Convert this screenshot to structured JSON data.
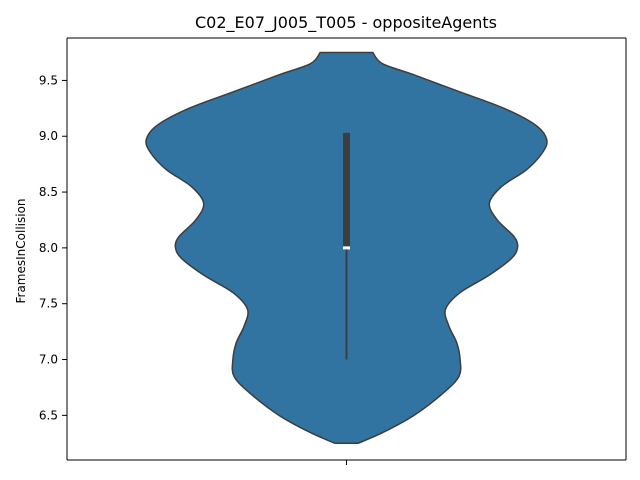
{
  "chart_data": {
    "type": "violin",
    "title": "C02_E07_J005_T005 - oppositeAgents",
    "xlabel": "",
    "ylabel": "FramesInCollision",
    "ylim": [
      6.1,
      9.88
    ],
    "yticks": [
      "6.5",
      "7.0",
      "7.5",
      "8.0",
      "8.5",
      "9.0",
      "9.5"
    ],
    "ytick_values": [
      6.5,
      7.0,
      7.5,
      8.0,
      8.5,
      9.0,
      9.5
    ],
    "xticks": [
      ""
    ],
    "grid": false,
    "violin": {
      "color": "#3274a1",
      "edge_color": "#3d3d3d",
      "range": [
        6.25,
        9.75
      ],
      "median": 8.0,
      "q1": 8.0,
      "q3": 9.03,
      "whisker_low": 7.0,
      "whisker_high": 9.03,
      "density_profile": [
        [
          6.25,
          0.052
        ],
        [
          6.35,
          0.165
        ],
        [
          6.5,
          0.3
        ],
        [
          6.7,
          0.43
        ],
        [
          6.85,
          0.5
        ],
        [
          7.0,
          0.505
        ],
        [
          7.15,
          0.49
        ],
        [
          7.3,
          0.455
        ],
        [
          7.45,
          0.44
        ],
        [
          7.6,
          0.505
        ],
        [
          7.75,
          0.63
        ],
        [
          7.9,
          0.73
        ],
        [
          8.0,
          0.76
        ],
        [
          8.1,
          0.745
        ],
        [
          8.25,
          0.67
        ],
        [
          8.4,
          0.635
        ],
        [
          8.55,
          0.69
        ],
        [
          8.7,
          0.8
        ],
        [
          8.85,
          0.87
        ],
        [
          8.97,
          0.89
        ],
        [
          9.1,
          0.84
        ],
        [
          9.25,
          0.7
        ],
        [
          9.4,
          0.5
        ],
        [
          9.55,
          0.3
        ],
        [
          9.65,
          0.16
        ],
        [
          9.75,
          0.117
        ]
      ]
    }
  }
}
